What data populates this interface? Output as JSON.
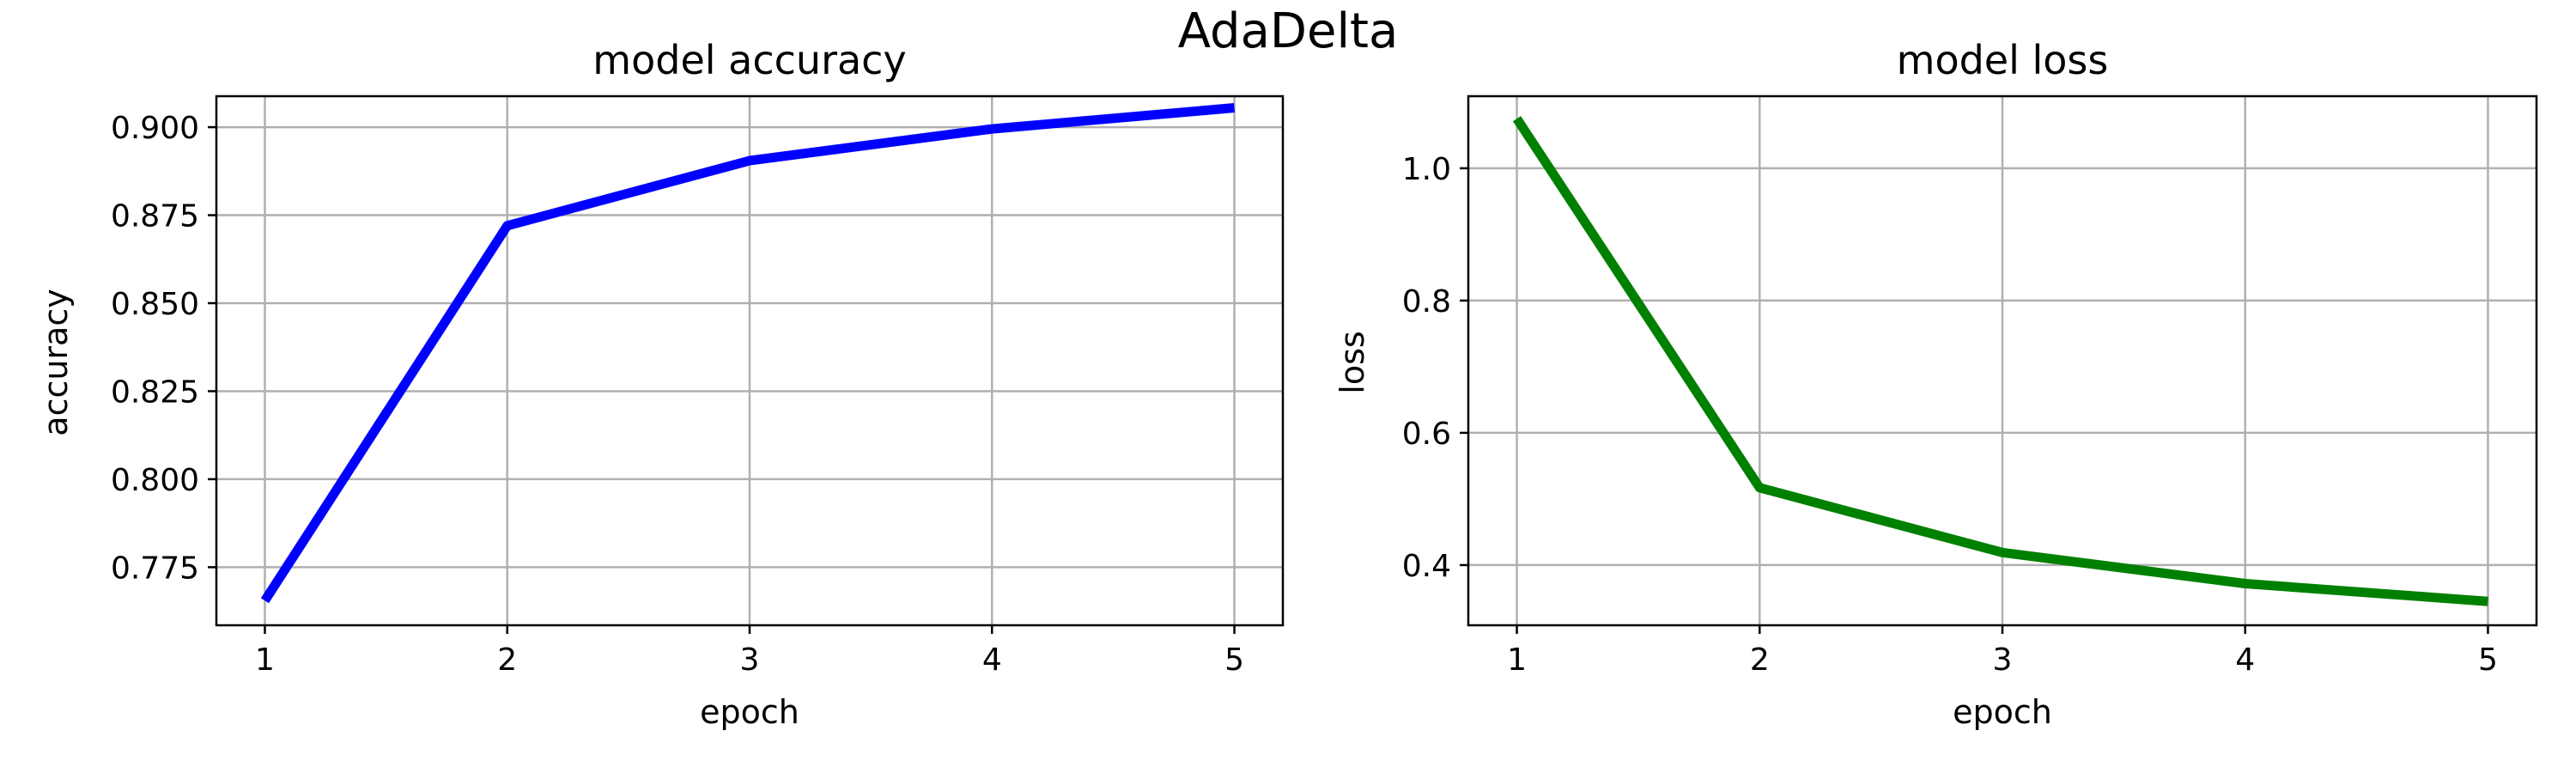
{
  "figure": {
    "suptitle": "AdaDelta"
  },
  "chart_data": [
    {
      "type": "line",
      "title": "model accuracy",
      "xlabel": "epoch",
      "ylabel": "accuracy",
      "x": [
        1,
        2,
        3,
        4,
        5
      ],
      "xticks": [
        "1",
        "2",
        "3",
        "4",
        "5"
      ],
      "xlim": [
        0.8,
        5.2
      ],
      "ylim": [
        0.7585,
        0.9088
      ],
      "yticks": [
        "0.775",
        "0.800",
        "0.825",
        "0.850",
        "0.875",
        "0.900"
      ],
      "grid": true,
      "series": [
        {
          "values": [
            0.7655,
            0.872,
            0.8905,
            0.8995,
            0.9055
          ],
          "color": "#0000ff"
        }
      ]
    },
    {
      "type": "line",
      "title": "model loss",
      "xlabel": "epoch",
      "ylabel": "loss",
      "x": [
        1,
        2,
        3,
        4,
        5
      ],
      "xticks": [
        "1",
        "2",
        "3",
        "4",
        "5"
      ],
      "xlim": [
        0.8,
        5.2
      ],
      "ylim": [
        0.309,
        1.109
      ],
      "yticks": [
        "0.4",
        "0.6",
        "0.8",
        "1.0"
      ],
      "grid": true,
      "series": [
        {
          "values": [
            1.075,
            0.517,
            0.419,
            0.372,
            0.345
          ],
          "color": "#008000"
        }
      ]
    }
  ]
}
